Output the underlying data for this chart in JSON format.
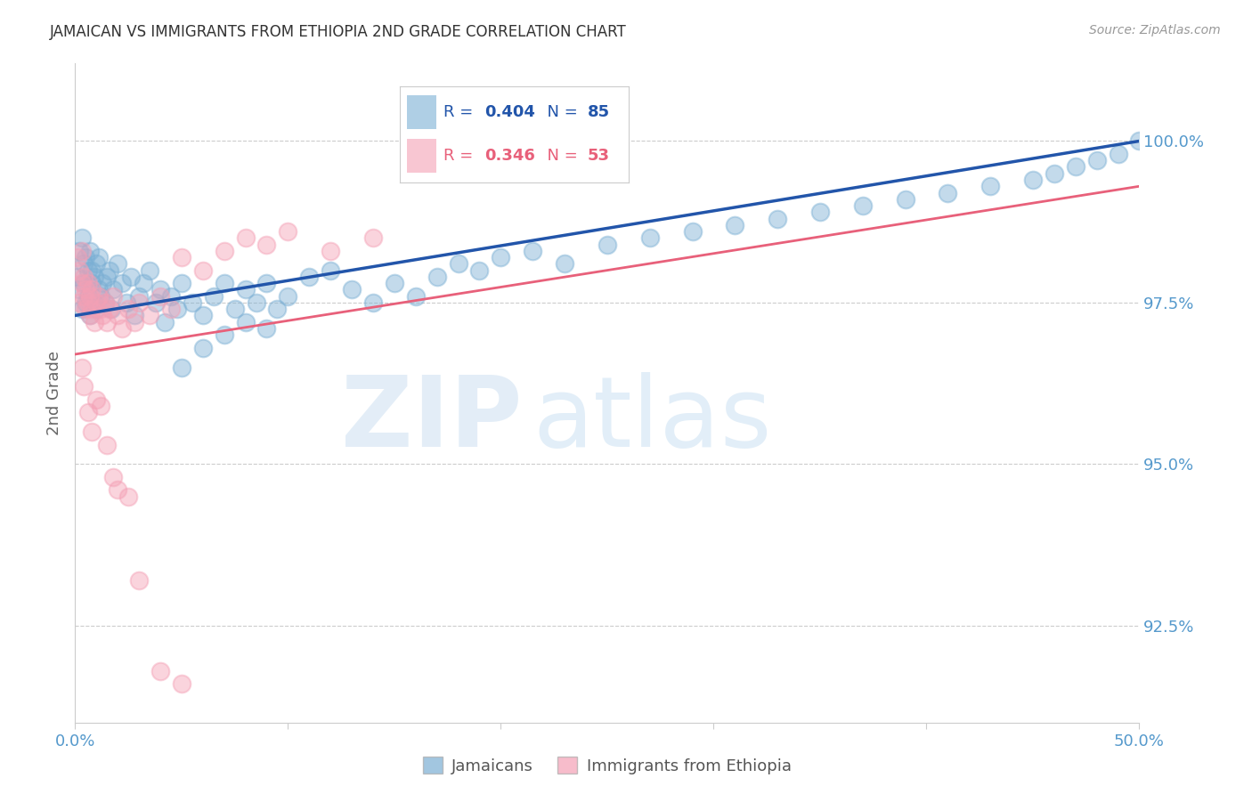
{
  "title": "JAMAICAN VS IMMIGRANTS FROM ETHIOPIA 2ND GRADE CORRELATION CHART",
  "source": "Source: ZipAtlas.com",
  "ylabel": "2nd Grade",
  "yticks": [
    92.5,
    95.0,
    97.5,
    100.0
  ],
  "ytick_labels": [
    "92.5%",
    "95.0%",
    "97.5%",
    "100.0%"
  ],
  "xlim": [
    0.0,
    0.5
  ],
  "ylim": [
    91.0,
    101.2
  ],
  "blue_R": 0.404,
  "blue_N": 85,
  "pink_R": 0.346,
  "pink_N": 53,
  "blue_color": "#7bafd4",
  "pink_color": "#f4a0b5",
  "blue_line_color": "#2255aa",
  "pink_line_color": "#e8607a",
  "legend_blue_label": "Jamaicans",
  "legend_pink_label": "Immigrants from Ethiopia",
  "title_color": "#333333",
  "axis_label_color": "#5599cc",
  "grid_color": "#cccccc",
  "blue_x": [
    0.001,
    0.002,
    0.002,
    0.003,
    0.003,
    0.004,
    0.004,
    0.005,
    0.005,
    0.006,
    0.006,
    0.007,
    0.007,
    0.008,
    0.008,
    0.009,
    0.009,
    0.01,
    0.01,
    0.011,
    0.011,
    0.012,
    0.013,
    0.014,
    0.015,
    0.016,
    0.017,
    0.018,
    0.02,
    0.022,
    0.024,
    0.026,
    0.028,
    0.03,
    0.032,
    0.035,
    0.038,
    0.04,
    0.042,
    0.045,
    0.048,
    0.05,
    0.055,
    0.06,
    0.065,
    0.07,
    0.075,
    0.08,
    0.085,
    0.09,
    0.095,
    0.1,
    0.11,
    0.12,
    0.13,
    0.14,
    0.15,
    0.16,
    0.17,
    0.18,
    0.19,
    0.2,
    0.215,
    0.23,
    0.25,
    0.27,
    0.29,
    0.31,
    0.33,
    0.35,
    0.37,
    0.39,
    0.41,
    0.43,
    0.45,
    0.46,
    0.47,
    0.48,
    0.49,
    0.5,
    0.05,
    0.06,
    0.07,
    0.08,
    0.09
  ],
  "blue_y": [
    97.9,
    98.3,
    97.7,
    98.5,
    97.4,
    98.1,
    97.8,
    98.2,
    97.5,
    98.0,
    97.6,
    98.3,
    97.3,
    97.8,
    98.0,
    97.5,
    97.9,
    98.1,
    97.4,
    97.7,
    98.2,
    97.6,
    97.8,
    97.5,
    97.9,
    98.0,
    97.4,
    97.7,
    98.1,
    97.8,
    97.5,
    97.9,
    97.3,
    97.6,
    97.8,
    98.0,
    97.5,
    97.7,
    97.2,
    97.6,
    97.4,
    97.8,
    97.5,
    97.3,
    97.6,
    97.8,
    97.4,
    97.7,
    97.5,
    97.8,
    97.4,
    97.6,
    97.9,
    98.0,
    97.7,
    97.5,
    97.8,
    97.6,
    97.9,
    98.1,
    98.0,
    98.2,
    98.3,
    98.1,
    98.4,
    98.5,
    98.6,
    98.7,
    98.8,
    98.9,
    99.0,
    99.1,
    99.2,
    99.3,
    99.4,
    99.5,
    99.6,
    99.7,
    99.8,
    100.0,
    96.5,
    96.8,
    97.0,
    97.2,
    97.1
  ],
  "pink_x": [
    0.001,
    0.002,
    0.002,
    0.003,
    0.003,
    0.004,
    0.004,
    0.005,
    0.005,
    0.006,
    0.006,
    0.007,
    0.007,
    0.008,
    0.008,
    0.009,
    0.01,
    0.011,
    0.012,
    0.013,
    0.014,
    0.015,
    0.016,
    0.018,
    0.02,
    0.022,
    0.025,
    0.028,
    0.03,
    0.035,
    0.04,
    0.045,
    0.05,
    0.06,
    0.07,
    0.08,
    0.09,
    0.1,
    0.12,
    0.14,
    0.003,
    0.004,
    0.006,
    0.008,
    0.01,
    0.012,
    0.015,
    0.018,
    0.02,
    0.025,
    0.03,
    0.04,
    0.05
  ],
  "pink_y": [
    98.2,
    98.0,
    97.5,
    98.3,
    97.8,
    97.6,
    97.9,
    97.4,
    97.7,
    97.5,
    97.8,
    97.3,
    97.6,
    97.4,
    97.7,
    97.2,
    97.5,
    97.6,
    97.4,
    97.3,
    97.5,
    97.2,
    97.4,
    97.6,
    97.3,
    97.1,
    97.4,
    97.2,
    97.5,
    97.3,
    97.6,
    97.4,
    98.2,
    98.0,
    98.3,
    98.5,
    98.4,
    98.6,
    98.3,
    98.5,
    96.5,
    96.2,
    95.8,
    95.5,
    96.0,
    95.9,
    95.3,
    94.8,
    94.6,
    94.5,
    93.2,
    91.8,
    91.6
  ]
}
